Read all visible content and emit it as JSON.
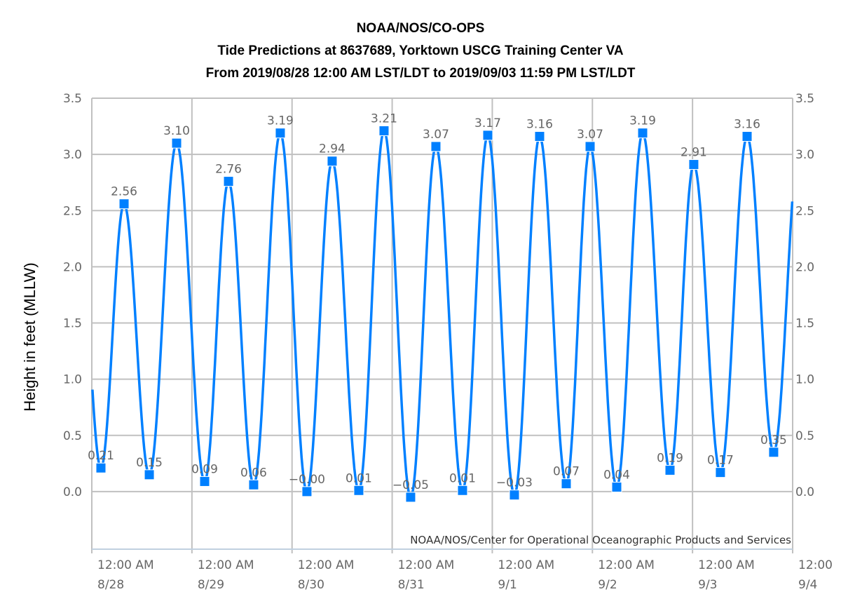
{
  "chart_data": {
    "type": "line",
    "title": [
      "NOAA/NOS/CO-OPS",
      "Tide Predictions at 8637689, Yorktown USCG Training Center VA",
      "From 2019/08/28 12:00 AM LST/LDT to 2019/09/03 11:59 PM LST/LDT"
    ],
    "ylabel": "Height in feet (MLLW)",
    "xlabel": "",
    "credit": "NOAA/NOS/Center for Operational Oceanographic Products and Services",
    "ylim": [
      -0.5,
      3.5
    ],
    "yticks": [
      "0.0",
      "0.5",
      "1.0",
      "1.5",
      "2.0",
      "2.5",
      "3.0",
      "3.5"
    ],
    "xlim": [
      "2019-08-28 00:00",
      "2019-09-04 00:00"
    ],
    "xticks": [
      {
        "time": "12:00 AM",
        "date": "8/28"
      },
      {
        "time": "12:00 AM",
        "date": "8/29"
      },
      {
        "time": "12:00 AM",
        "date": "8/30"
      },
      {
        "time": "12:00 AM",
        "date": "8/31"
      },
      {
        "time": "12:00 AM",
        "date": "9/1"
      },
      {
        "time": "12:00 AM",
        "date": "9/2"
      },
      {
        "time": "12:00 AM",
        "date": "9/3"
      },
      {
        "time": "12:00",
        "date": "9/4"
      }
    ],
    "grid": true,
    "line_color": "#0080ff",
    "points": [
      {
        "t": "2019-08-28 02:11",
        "v": 0.21,
        "label": "0.21"
      },
      {
        "t": "2019-08-28 07:44",
        "v": 2.56,
        "label": "2.56"
      },
      {
        "t": "2019-08-28 13:47",
        "v": 0.15,
        "label": "0.15"
      },
      {
        "t": "2019-08-28 20:20",
        "v": 3.1,
        "label": "3.10"
      },
      {
        "t": "2019-08-29 03:03",
        "v": 0.09,
        "label": "0.09"
      },
      {
        "t": "2019-08-29 08:46",
        "v": 2.76,
        "label": "2.76"
      },
      {
        "t": "2019-08-29 14:48",
        "v": 0.06,
        "label": "0.06"
      },
      {
        "t": "2019-08-29 21:11",
        "v": 3.19,
        "label": "3.19"
      },
      {
        "t": "2019-08-30 03:34",
        "v": -0.0,
        "label": "−0.00"
      },
      {
        "t": "2019-08-30 09:37",
        "v": 2.94,
        "label": "2.94"
      },
      {
        "t": "2019-08-30 16:00",
        "v": 0.01,
        "label": "0.01"
      },
      {
        "t": "2019-08-30 22:03",
        "v": 3.21,
        "label": "3.21"
      },
      {
        "t": "2019-08-31 04:26",
        "v": -0.05,
        "label": "−0.05"
      },
      {
        "t": "2019-08-31 10:29",
        "v": 3.07,
        "label": "3.07"
      },
      {
        "t": "2019-08-31 16:52",
        "v": 0.01,
        "label": "0.01"
      },
      {
        "t": "2019-08-31 22:55",
        "v": 3.17,
        "label": "3.17"
      },
      {
        "t": "2019-09-01 05:18",
        "v": -0.03,
        "label": "−0.03"
      },
      {
        "t": "2019-09-01 11:21",
        "v": 3.16,
        "label": "3.16"
      },
      {
        "t": "2019-09-01 17:44",
        "v": 0.07,
        "label": "0.07"
      },
      {
        "t": "2019-09-01 23:27",
        "v": 3.07,
        "label": "3.07"
      },
      {
        "t": "2019-09-02 05:50",
        "v": 0.04,
        "label": "0.04"
      },
      {
        "t": "2019-09-02 12:03",
        "v": 3.19,
        "label": "3.19"
      },
      {
        "t": "2019-09-02 18:36",
        "v": 0.19,
        "label": "0.19"
      },
      {
        "t": "2019-09-03 00:18",
        "v": 2.91,
        "label": "2.91"
      },
      {
        "t": "2019-09-03 06:41",
        "v": 0.17,
        "label": "0.17"
      },
      {
        "t": "2019-09-03 13:05",
        "v": 3.16,
        "label": "3.16"
      },
      {
        "t": "2019-09-03 19:27",
        "v": 0.35,
        "label": "0.35"
      }
    ]
  }
}
